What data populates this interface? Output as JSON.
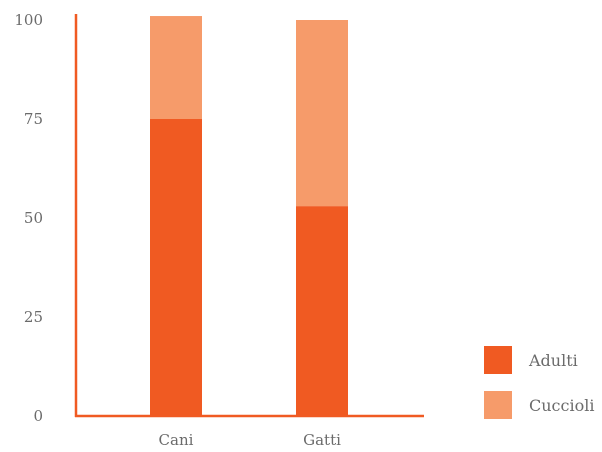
{
  "colors": {
    "axis": "#f05a22",
    "adulti": "#f05a22",
    "cuccioli": "#f69b6a",
    "text": "#6b6b6b"
  },
  "chart_data": {
    "type": "bar",
    "stacked": true,
    "categories": [
      "Cani",
      "Gatti"
    ],
    "series": [
      {
        "name": "Adulti",
        "values": [
          75,
          53
        ],
        "color": "#f05a22"
      },
      {
        "name": "Cuccioli",
        "values": [
          26,
          47
        ],
        "color": "#f69b6a"
      }
    ],
    "ylim": [
      0,
      100
    ],
    "yticks": [
      0,
      25,
      50,
      75,
      100
    ],
    "grid": false,
    "legend_position": "bottom-right",
    "title": "",
    "xlabel": "",
    "ylabel": ""
  }
}
